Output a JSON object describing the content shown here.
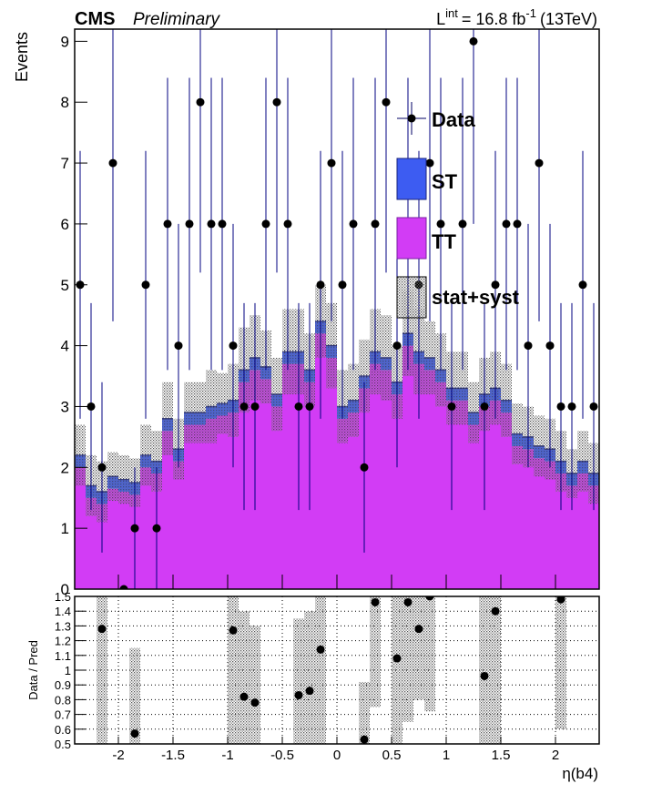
{
  "chart_data": [
    {
      "type": "stacked-histogram",
      "title": "CMS",
      "subtitle": "Preliminary",
      "lumi": [
        "L",
        "int",
        "= 16.8 fb",
        "-1",
        "(13TeV)"
      ],
      "ylabel": "Events",
      "bins": [
        -2.4,
        -2.3,
        -2.2,
        -2.1,
        -2.0,
        -1.9,
        -1.8,
        -1.7,
        -1.6,
        -1.5,
        -1.4,
        -1.3,
        -1.2,
        -1.1,
        -1.0,
        -0.9,
        -0.8,
        -0.7,
        -0.6,
        -0.5,
        -0.4,
        -0.3,
        -0.2,
        -0.1,
        0,
        0.1,
        0.2,
        0.3,
        0.4,
        0.5,
        0.6,
        0.7,
        0.8,
        0.9,
        1.0,
        1.1,
        1.2,
        1.3,
        1.4,
        1.5,
        1.6,
        1.7,
        1.8,
        1.9,
        2.0,
        2.1,
        2.2,
        2.3,
        2.4
      ],
      "xlim": [
        -2.4,
        2.4
      ],
      "ylim": [
        0,
        9.2
      ],
      "yticks": [
        0,
        1,
        2,
        3,
        4,
        5,
        6,
        7,
        8,
        9
      ],
      "series": [
        {
          "name": "TT",
          "color": "#d23cf5",
          "values": [
            2.0,
            1.5,
            1.4,
            1.65,
            1.6,
            1.55,
            2.0,
            1.9,
            2.6,
            2.1,
            2.7,
            2.7,
            2.8,
            2.85,
            2.9,
            3.4,
            3.6,
            3.45,
            3.0,
            3.7,
            3.7,
            3.4,
            4.2,
            3.8,
            2.8,
            2.9,
            3.3,
            3.7,
            3.6,
            3.2,
            4.0,
            3.7,
            3.6,
            3.4,
            3.1,
            3.1,
            2.7,
            3.0,
            3.1,
            2.9,
            2.35,
            2.3,
            2.15,
            2.1,
            1.9,
            1.7,
            1.9,
            1.7
          ]
        },
        {
          "name": "ST",
          "color": "#3d5cf2",
          "values": [
            0.2,
            0.2,
            0.2,
            0.2,
            0.2,
            0.2,
            0.2,
            0.2,
            0.2,
            0.2,
            0.2,
            0.2,
            0.2,
            0.2,
            0.2,
            0.2,
            0.2,
            0.2,
            0.2,
            0.2,
            0.2,
            0.2,
            0.2,
            0.2,
            0.2,
            0.2,
            0.2,
            0.2,
            0.2,
            0.2,
            0.2,
            0.2,
            0.2,
            0.2,
            0.2,
            0.2,
            0.2,
            0.2,
            0.2,
            0.2,
            0.2,
            0.2,
            0.2,
            0.2,
            0.2,
            0.2,
            0.2,
            0.2
          ]
        }
      ],
      "data": {
        "name": "Data",
        "color": "#000000",
        "values": [
          5,
          3,
          2,
          7,
          0,
          1,
          5,
          1,
          6,
          4,
          6,
          8,
          6,
          6,
          4,
          3,
          3,
          6,
          8,
          6,
          3,
          3,
          5,
          7,
          5,
          6,
          2,
          6,
          8,
          4,
          6,
          5,
          7,
          6,
          3,
          6,
          9,
          3,
          5,
          6,
          6,
          4,
          7,
          4,
          3,
          3,
          5,
          3
        ],
        "errors": [
          2.2,
          1.7,
          1.4,
          2.6,
          0,
          1,
          2.2,
          1,
          2.4,
          2,
          2.4,
          2.8,
          2.4,
          2.4,
          2,
          1.7,
          1.7,
          2.4,
          2.8,
          2.4,
          1.7,
          1.7,
          2.2,
          2.6,
          2.2,
          2.4,
          1.4,
          2.4,
          2.8,
          2,
          2.4,
          2.2,
          2.6,
          2.4,
          1.7,
          2.4,
          3,
          1.7,
          2.2,
          2.4,
          2.4,
          2,
          2.6,
          2,
          1.7,
          1.7,
          2.2,
          1.7
        ]
      },
      "band": {
        "name": "stat+syst",
        "values": [
          0.5,
          0.5,
          0.5,
          0.4,
          0.4,
          0.4,
          0.5,
          0.5,
          0.6,
          0.5,
          0.5,
          0.5,
          0.6,
          0.5,
          0.6,
          0.7,
          0.7,
          0.6,
          0.6,
          0.7,
          0.7,
          0.6,
          0.6,
          0.7,
          0.6,
          0.6,
          0.6,
          0.7,
          0.7,
          0.6,
          0.7,
          0.7,
          0.6,
          0.6,
          0.6,
          0.6,
          0.5,
          0.6,
          0.6,
          0.6,
          0.5,
          0.5,
          0.5,
          0.5,
          0.5,
          0.4,
          0.5,
          0.5
        ]
      }
    },
    {
      "type": "ratio",
      "ylabel": "Data / Pred",
      "xlabel": "η(b4)",
      "xlim": [
        -2.4,
        2.4
      ],
      "xticks": [
        -2,
        -1.5,
        -1,
        -0.5,
        0,
        0.5,
        1,
        1.5,
        2
      ],
      "ylim": [
        0.5,
        1.5
      ],
      "yticks": [
        0.5,
        0.6,
        0.7,
        0.8,
        0.9,
        1,
        1.1,
        1.2,
        1.3,
        1.4,
        1.5
      ],
      "grid": true,
      "values": [
        null,
        null,
        1.28,
        null,
        null,
        0.57,
        null,
        null,
        null,
        null,
        null,
        null,
        null,
        null,
        1.27,
        0.82,
        0.78,
        null,
        null,
        null,
        0.83,
        0.86,
        1.14,
        null,
        null,
        null,
        0.53,
        1.46,
        null,
        1.08,
        1.46,
        1.28,
        1.5,
        null,
        null,
        null,
        null,
        0.96,
        1.4,
        null,
        null,
        null,
        null,
        null,
        1.48,
        null,
        null,
        null
      ],
      "band_low": [
        null,
        null,
        0.5,
        null,
        null,
        0.5,
        null,
        null,
        null,
        null,
        null,
        null,
        null,
        null,
        0.5,
        0.5,
        0.5,
        null,
        null,
        null,
        0.5,
        0.5,
        0.5,
        null,
        null,
        null,
        0.5,
        0.75,
        null,
        0.5,
        0.65,
        0.8,
        0.72,
        null,
        null,
        null,
        null,
        0.5,
        0.5,
        null,
        null,
        null,
        null,
        null,
        0.6,
        null,
        null,
        null
      ],
      "band_high": [
        null,
        null,
        1.5,
        null,
        null,
        1.15,
        null,
        null,
        null,
        null,
        null,
        null,
        null,
        null,
        1.5,
        1.4,
        1.3,
        null,
        null,
        null,
        1.35,
        1.4,
        1.5,
        null,
        null,
        null,
        0.92,
        1.5,
        null,
        1.5,
        1.5,
        1.5,
        1.5,
        null,
        null,
        null,
        null,
        1.5,
        1.5,
        null,
        null,
        null,
        null,
        null,
        1.5,
        null,
        null,
        null
      ]
    }
  ]
}
